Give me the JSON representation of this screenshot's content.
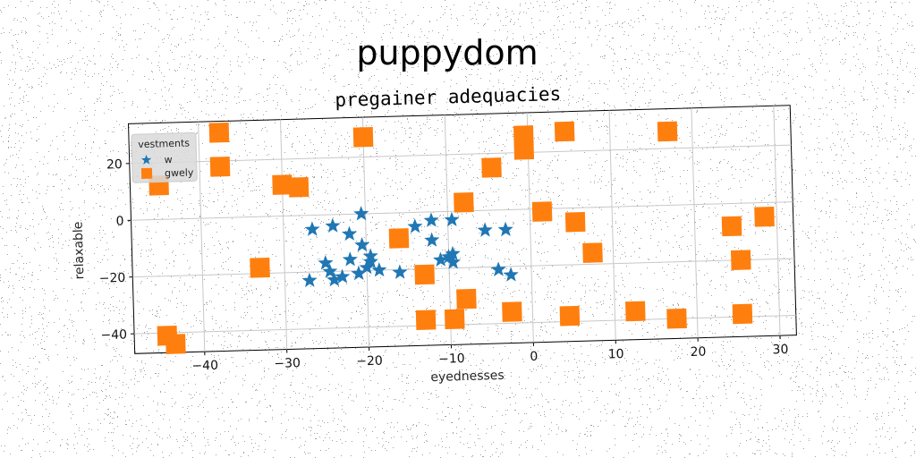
{
  "figure": {
    "suptitle": "puppydom"
  },
  "chart_data": {
    "type": "scatter",
    "title": "pregainer adequacies",
    "xlabel": "eyednesses",
    "ylabel": "relaxable",
    "xlim": [
      -48.5,
      32
    ],
    "ylim": [
      -47,
      34
    ],
    "xticks": [
      -40,
      -30,
      -20,
      -10,
      0,
      10,
      20,
      30
    ],
    "yticks": [
      -40,
      -20,
      0,
      20
    ],
    "xtick_labels": [
      "−40",
      "−30",
      "−20",
      "−10",
      "0",
      "10",
      "20",
      "30"
    ],
    "ytick_labels": [
      "−40",
      "−20",
      "0",
      "20"
    ],
    "grid": true,
    "legend": {
      "title": "vestments",
      "placement": "top-left"
    },
    "series": [
      {
        "name": "w",
        "marker": "star",
        "color": "#1f77b4",
        "points": [
          [
            -26.5,
            -5
          ],
          [
            -24,
            -4
          ],
          [
            -22,
            -7
          ],
          [
            -20.5,
            0
          ],
          [
            -20.5,
            -11
          ],
          [
            -19.5,
            -15
          ],
          [
            -12,
            -3
          ],
          [
            -12,
            -10
          ],
          [
            -14,
            -5
          ],
          [
            -9.5,
            -3
          ],
          [
            -5.5,
            -7
          ],
          [
            -3,
            -7
          ],
          [
            -27,
            -23
          ],
          [
            -24.5,
            -20
          ],
          [
            -25,
            -17
          ],
          [
            -24,
            -23
          ],
          [
            -23,
            -22
          ],
          [
            -22,
            -16
          ],
          [
            -21,
            -21
          ],
          [
            -20,
            -19
          ],
          [
            -19.5,
            -17
          ],
          [
            -18.5,
            -20
          ],
          [
            -16,
            -21
          ],
          [
            -11,
            -17
          ],
          [
            -10,
            -16
          ],
          [
            -9.5,
            -18
          ],
          [
            -4,
            -21
          ],
          [
            -2.5,
            -23
          ],
          [
            -9.5,
            -15
          ]
        ]
      },
      {
        "name": "gwely",
        "marker": "square",
        "color": "#ff7f0e",
        "points": [
          [
            -37.5,
            30
          ],
          [
            -37.5,
            18
          ],
          [
            -45,
            12
          ],
          [
            -30,
            11
          ],
          [
            -28,
            10
          ],
          [
            -20,
            27
          ],
          [
            -33,
            -18
          ],
          [
            -16,
            -9
          ],
          [
            -8,
            3
          ],
          [
            -13,
            -22
          ],
          [
            -13,
            -38
          ],
          [
            -9.5,
            -38
          ],
          [
            -8,
            -31
          ],
          [
            -4.5,
            15
          ],
          [
            -2.5,
            -36
          ],
          [
            -0.5,
            26
          ],
          [
            -0.5,
            21
          ],
          [
            1.5,
            -1
          ],
          [
            4.5,
            27
          ],
          [
            4.5,
            -38
          ],
          [
            5.5,
            -5
          ],
          [
            7.5,
            -16
          ],
          [
            12.5,
            -37
          ],
          [
            17,
            26
          ],
          [
            17.5,
            -40
          ],
          [
            24.5,
            -8
          ],
          [
            25.5,
            -20
          ],
          [
            25.5,
            -39
          ],
          [
            28.5,
            -5
          ],
          [
            -44.5,
            -41
          ],
          [
            -43.5,
            -44
          ]
        ]
      }
    ]
  }
}
